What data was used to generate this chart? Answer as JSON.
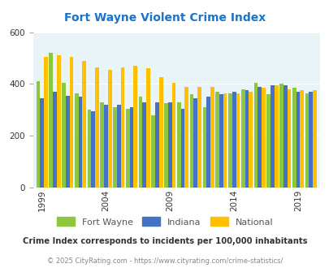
{
  "title": "Fort Wayne Violent Crime Index",
  "title_color": "#1874cd",
  "years": [
    1999,
    2000,
    2001,
    2002,
    2003,
    2004,
    2005,
    2006,
    2007,
    2008,
    2009,
    2010,
    2011,
    2012,
    2013,
    2014,
    2015,
    2016,
    2017,
    2018,
    2019,
    2020
  ],
  "fort_wayne": [
    410,
    520,
    405,
    365,
    300,
    330,
    310,
    305,
    350,
    280,
    325,
    330,
    360,
    310,
    370,
    365,
    380,
    405,
    360,
    400,
    385,
    365
  ],
  "indiana": [
    345,
    370,
    355,
    350,
    295,
    320,
    320,
    310,
    330,
    330,
    330,
    305,
    345,
    350,
    360,
    370,
    375,
    390,
    395,
    395,
    370,
    370
  ],
  "national": [
    505,
    510,
    505,
    490,
    465,
    455,
    465,
    470,
    460,
    425,
    405,
    390,
    390,
    390,
    365,
    365,
    370,
    385,
    395,
    380,
    375,
    375
  ],
  "fort_wayne_color": "#8dc63f",
  "indiana_color": "#4472c4",
  "national_color": "#ffc000",
  "bg_color": "#e8f4f8",
  "ylim": [
    0,
    600
  ],
  "yticks": [
    0,
    200,
    400,
    600
  ],
  "xtick_years": [
    1999,
    2004,
    2009,
    2014,
    2019
  ],
  "legend_labels": [
    "Fort Wayne",
    "Indiana",
    "National"
  ],
  "caption": "Crime Index corresponds to incidents per 100,000 inhabitants",
  "copyright": "© 2025 CityRating.com - https://www.cityrating.com/crime-statistics/",
  "caption_color": "#333333",
  "copyright_color": "#888888"
}
